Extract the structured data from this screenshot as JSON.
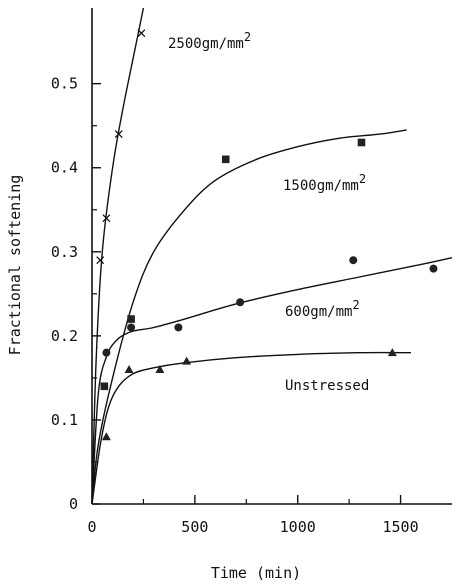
{
  "chart_data": {
    "type": "scatter",
    "title": "",
    "xlabel": "Time (min)",
    "ylabel": "Fractional softening",
    "xlim": [
      0,
      1750
    ],
    "ylim": [
      0,
      0.59
    ],
    "xticks": [
      0,
      500,
      1000,
      1500
    ],
    "xtick_labels": [
      "0",
      "500",
      "1000",
      "1500"
    ],
    "yticks": [
      0,
      0.1,
      0.2,
      0.3,
      0.4,
      0.5
    ],
    "ytick_labels": [
      "0",
      "0.1",
      "0.2",
      "0.3",
      "0.4",
      "0.5"
    ],
    "grid": false,
    "series": [
      {
        "name": "2500gm/mm2",
        "label_base": "2500gm/mm",
        "label_sup": "2",
        "marker": "x",
        "x": [
          40,
          70,
          130,
          240
        ],
        "y": [
          0.29,
          0.34,
          0.44,
          0.56
        ],
        "curve_x": [
          0,
          20,
          50,
          100,
          150,
          200,
          250
        ],
        "curve_y": [
          0.0,
          0.17,
          0.3,
          0.4,
          0.47,
          0.53,
          0.59
        ]
      },
      {
        "name": "1500gm/mm2",
        "label_base": "1500gm/mm",
        "label_sup": "2",
        "marker": "square",
        "x": [
          60,
          190,
          650,
          1310
        ],
        "y": [
          0.14,
          0.22,
          0.41,
          0.43
        ],
        "curve_x": [
          0,
          30,
          100,
          200,
          300,
          450,
          600,
          800,
          1000,
          1200,
          1400,
          1530
        ],
        "curve_y": [
          0.0,
          0.07,
          0.15,
          0.24,
          0.3,
          0.35,
          0.385,
          0.41,
          0.425,
          0.435,
          0.44,
          0.445
        ]
      },
      {
        "name": "600gm/mm2",
        "label_base": "600gm/mm",
        "label_sup": "2",
        "marker": "circle",
        "x": [
          70,
          190,
          420,
          720,
          1270,
          1660
        ],
        "y": [
          0.18,
          0.21,
          0.21,
          0.24,
          0.29,
          0.28
        ],
        "curve_x": [
          0,
          30,
          70,
          120,
          190,
          300,
          450,
          700,
          1000,
          1300,
          1600,
          1750
        ],
        "curve_y": [
          0.0,
          0.13,
          0.175,
          0.195,
          0.205,
          0.21,
          0.22,
          0.238,
          0.255,
          0.27,
          0.285,
          0.293
        ]
      },
      {
        "name": "Unstressed",
        "label_base": "Unstressed",
        "label_sup": "",
        "marker": "triangle",
        "x": [
          70,
          180,
          330,
          460,
          1460
        ],
        "y": [
          0.08,
          0.16,
          0.16,
          0.17,
          0.18
        ],
        "curve_x": [
          0,
          40,
          80,
          130,
          200,
          300,
          450,
          700,
          1000,
          1300,
          1550
        ],
        "curve_y": [
          0.0,
          0.07,
          0.115,
          0.14,
          0.155,
          0.162,
          0.168,
          0.174,
          0.178,
          0.18,
          0.18
        ]
      }
    ]
  }
}
